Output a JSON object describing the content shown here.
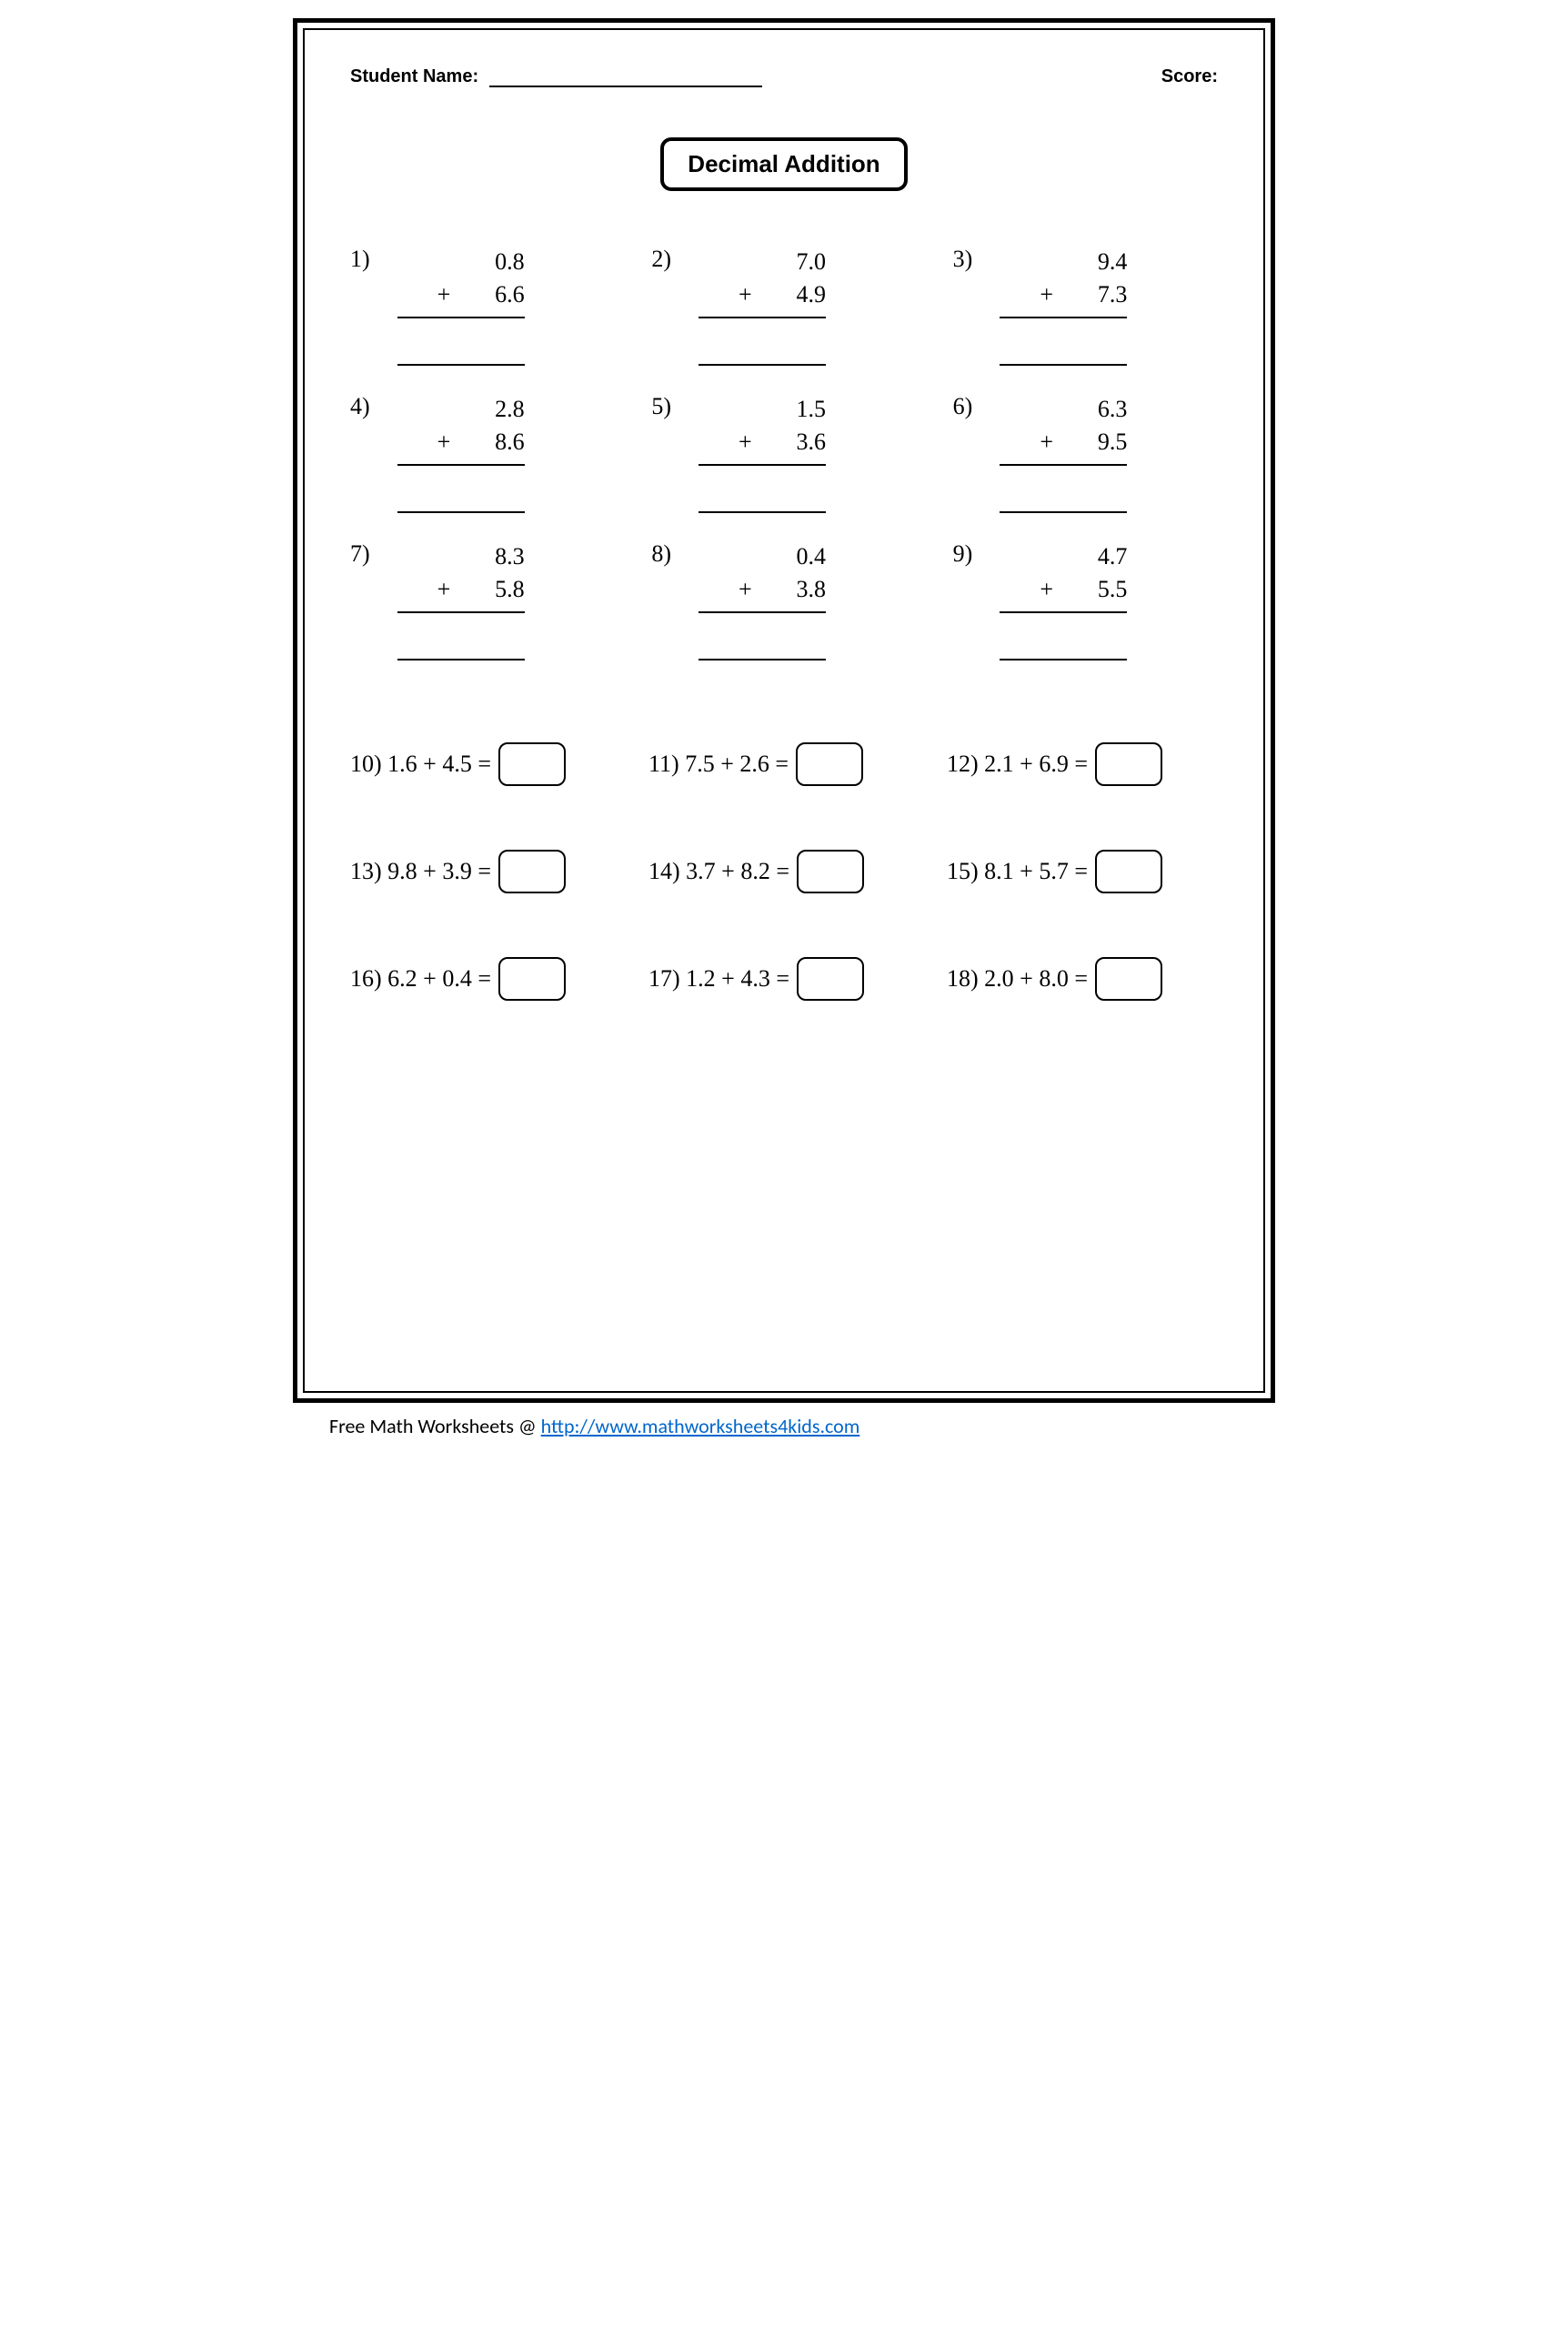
{
  "header": {
    "name_label": "Student Name:",
    "score_label": "Score:"
  },
  "title": "Decimal Addition",
  "vertical_problems": [
    {
      "n": "1)",
      "a": "0.8",
      "b": "6.6"
    },
    {
      "n": "2)",
      "a": "7.0",
      "b": "4.9"
    },
    {
      "n": "3)",
      "a": "9.4",
      "b": "7.3"
    },
    {
      "n": "4)",
      "a": "2.8",
      "b": "8.6"
    },
    {
      "n": "5)",
      "a": "1.5",
      "b": "3.6"
    },
    {
      "n": "6)",
      "a": "6.3",
      "b": "9.5"
    },
    {
      "n": "7)",
      "a": "8.3",
      "b": "5.8"
    },
    {
      "n": "8)",
      "a": "0.4",
      "b": "3.8"
    },
    {
      "n": "9)",
      "a": "4.7",
      "b": "5.5"
    }
  ],
  "horizontal_problems": [
    {
      "n": "10)",
      "a": "1.6",
      "b": "4.5"
    },
    {
      "n": "11)",
      "a": "7.5",
      "b": "2.6"
    },
    {
      "n": "12)",
      "a": "2.1",
      "b": "6.9"
    },
    {
      "n": "13)",
      "a": "9.8",
      "b": "3.9"
    },
    {
      "n": "14)",
      "a": "3.7",
      "b": "8.2"
    },
    {
      "n": "15)",
      "a": "8.1",
      "b": "5.7"
    },
    {
      "n": "16)",
      "a": "6.2",
      "b": "0.4"
    },
    {
      "n": "17)",
      "a": "1.2",
      "b": "4.3"
    },
    {
      "n": "18)",
      "a": "2.0",
      "b": "8.0"
    }
  ],
  "operator": "+",
  "equals": "=",
  "footer": {
    "text": "Free Math Worksheets @ ",
    "link_text": "http://www.mathworksheets4kids.com"
  },
  "style": {
    "border_color": "#000000",
    "background": "#ffffff",
    "link_color": "#0066cc",
    "body_fontsize": 26,
    "header_fontsize": 20,
    "title_fontsize": 26,
    "rule_width": 2.5,
    "box_radius": 10
  }
}
